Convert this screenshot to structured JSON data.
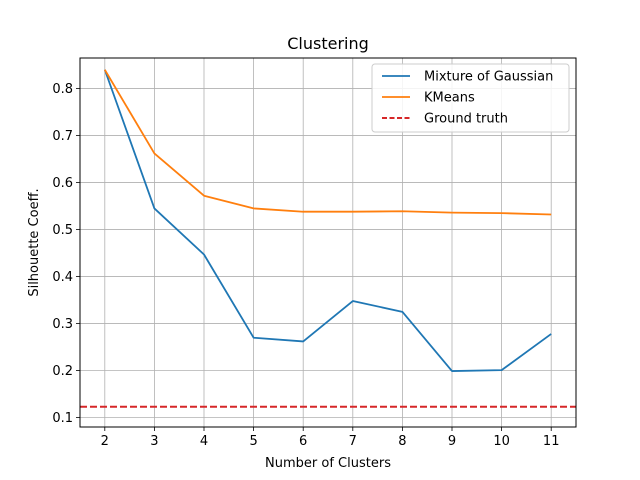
{
  "chart_data": {
    "type": "line",
    "title": "Clustering",
    "xlabel": "Number of Clusters",
    "ylabel": "Silhouette Coeff.",
    "x": [
      2,
      3,
      4,
      5,
      6,
      7,
      8,
      9,
      10,
      11
    ],
    "xlim": [
      1.5,
      11.5
    ],
    "ylim": [
      0.08,
      0.865
    ],
    "yticks": [
      0.1,
      0.2,
      0.3,
      0.4,
      0.5,
      0.6,
      0.7,
      0.8
    ],
    "ytick_labels": [
      "0.1",
      "0.2",
      "0.3",
      "0.4",
      "0.5",
      "0.6",
      "0.7",
      "0.8"
    ],
    "xtick_labels": [
      "2",
      "3",
      "4",
      "5",
      "6",
      "7",
      "8",
      "9",
      "10",
      "11"
    ],
    "grid": true,
    "legend_position": "top-right",
    "series": [
      {
        "name": "Mixture of Gaussian",
        "color": "#1f77b4",
        "style": "solid",
        "values": [
          0.84,
          0.545,
          0.447,
          0.27,
          0.262,
          0.348,
          0.325,
          0.199,
          0.201,
          0.278
        ]
      },
      {
        "name": "KMeans",
        "color": "#ff7f0e",
        "style": "solid",
        "values": [
          0.84,
          0.662,
          0.572,
          0.545,
          0.538,
          0.538,
          0.539,
          0.536,
          0.535,
          0.532
        ]
      }
    ],
    "reference_lines": [
      {
        "name": "Ground truth",
        "color": "#d62728",
        "style": "dashed",
        "y": 0.123
      }
    ]
  }
}
